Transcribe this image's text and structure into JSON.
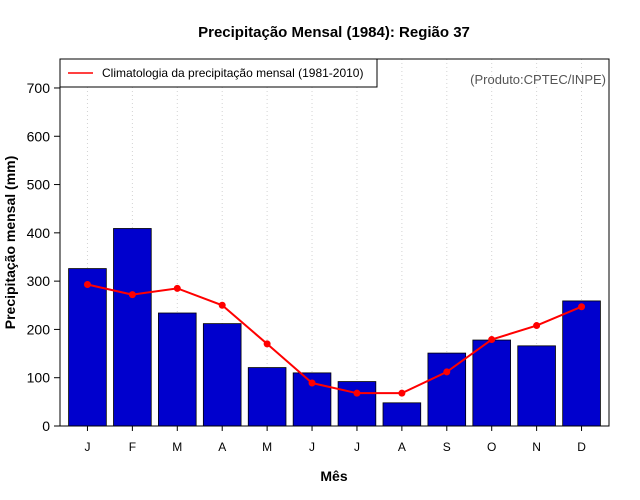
{
  "chart_data": {
    "type": "bar",
    "title": "Precipitação Mensal (1984): Região 37",
    "xlabel": "Mês",
    "ylabel": "Precipitação mensal (mm)",
    "categories": [
      "J",
      "F",
      "M",
      "A",
      "M",
      "J",
      "J",
      "A",
      "S",
      "O",
      "N",
      "D"
    ],
    "ylim": [
      0,
      760
    ],
    "yticks": [
      0,
      100,
      200,
      300,
      400,
      500,
      600,
      700
    ],
    "grid": "vertical dotted",
    "series": [
      {
        "name": "Precipitação mensal 1984",
        "type": "bar",
        "color": "#0000cd",
        "values": [
          326,
          409,
          234,
          212,
          121,
          110,
          92,
          48,
          151,
          178,
          166,
          259
        ]
      },
      {
        "name": "Climatologia da precipitação mensal (1981-2010)",
        "type": "line",
        "color": "#ff0000",
        "values": [
          293,
          272,
          285,
          250,
          170,
          89,
          68,
          68,
          112,
          179,
          208,
          247
        ]
      }
    ],
    "legend": {
      "position": "top-left",
      "entries": [
        "Climatologia da precipitação mensal (1981-2010)"
      ]
    },
    "annotation": "(Produto:CPTEC/INPE)"
  }
}
